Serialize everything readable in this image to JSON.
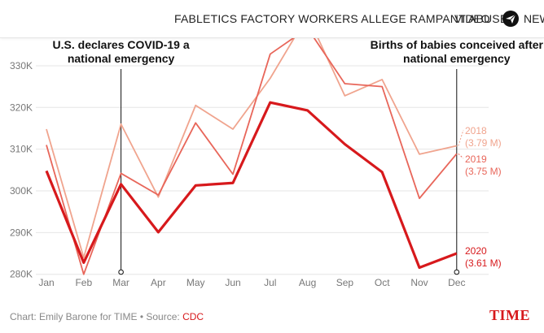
{
  "header": {
    "headline": "FABLETICS FACTORY WORKERS ALLEGE RAMPANT ABUSE",
    "video_label": "VIDEO",
    "news_label": "NEWS",
    "news_icon": "paper-plane-icon"
  },
  "chart_data": {
    "type": "line",
    "title": "",
    "xlabel": "",
    "ylabel": "",
    "categories": [
      "Jan",
      "Feb",
      "Mar",
      "Apr",
      "May",
      "Jun",
      "Jul",
      "Aug",
      "Sep",
      "Oct",
      "Nov",
      "Dec"
    ],
    "ylim": [
      278000,
      337000
    ],
    "yticks": [
      280000,
      290000,
      300000,
      310000,
      320000,
      330000
    ],
    "ytick_labels": [
      "280K",
      "290K",
      "300K",
      "310K",
      "320K",
      "330K"
    ],
    "grid": true,
    "series": [
      {
        "name": "2018",
        "total": "(3.79 M)",
        "color": "#f0a48e",
        "values": [
          314800,
          284000,
          316000,
          298500,
          320500,
          314800,
          327000,
          342000,
          322800,
          326700,
          308800,
          310800
        ]
      },
      {
        "name": "2019",
        "total": "(3.75 M)",
        "color": "#e8665a",
        "values": [
          311000,
          280000,
          304200,
          299000,
          316300,
          304000,
          332800,
          339000,
          325700,
          325000,
          298200,
          308900
        ]
      },
      {
        "name": "2020",
        "total": "(3.61 M)",
        "color": "#d7191c",
        "values": [
          304800,
          282800,
          301600,
          290100,
          301300,
          301900,
          321200,
          319300,
          311200,
          304500,
          281600,
          285000
        ]
      }
    ],
    "annotations": [
      {
        "category": "Mar",
        "lines": [
          "U.S. declares COVID-19 a",
          "national emergency"
        ]
      },
      {
        "category": "Dec",
        "lines": [
          "Births of babies conceived after",
          "national emergency"
        ]
      }
    ]
  },
  "footer": {
    "credit_prefix": "Chart: Emily Barone for TIME • Source: ",
    "source": "CDC",
    "logo": "TIME"
  }
}
